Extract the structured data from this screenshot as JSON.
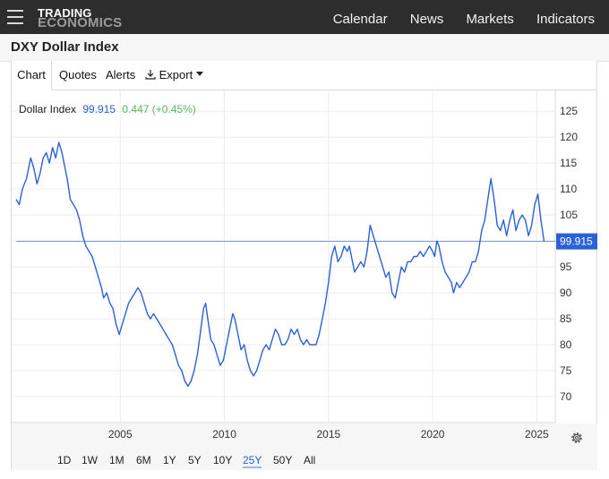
{
  "brand": {
    "line1": "TRADING",
    "line2": "ECONOMICS"
  },
  "topnav": [
    "Calendar",
    "News",
    "Markets",
    "Indicators"
  ],
  "page_title": "DXY Dollar Index",
  "tabs": {
    "chart": "Chart",
    "quotes": "Quotes",
    "alerts": "Alerts",
    "export": "Export"
  },
  "legend": {
    "name": "Dollar Index",
    "value": "99.915",
    "change": "0.447 (+0.45%)"
  },
  "last_value_tag": "99.915",
  "ranges": [
    "1D",
    "1W",
    "1M",
    "6M",
    "1Y",
    "5Y",
    "10Y",
    "25Y",
    "50Y",
    "All"
  ],
  "selected_range": "25Y",
  "colors": {
    "series": "#2b61d6",
    "change_up": "#5cb85c",
    "topbar": "#2d2d2d"
  },
  "chart_data": {
    "type": "line",
    "series": [
      {
        "name": "Dollar Index",
        "points": [
          [
            2000.0,
            108
          ],
          [
            2000.15,
            107
          ],
          [
            2000.3,
            110
          ],
          [
            2000.5,
            112
          ],
          [
            2000.7,
            116
          ],
          [
            2000.85,
            114
          ],
          [
            2001.0,
            111
          ],
          [
            2001.15,
            113
          ],
          [
            2001.3,
            116
          ],
          [
            2001.45,
            117
          ],
          [
            2001.6,
            115
          ],
          [
            2001.75,
            118
          ],
          [
            2001.9,
            116
          ],
          [
            2002.05,
            119
          ],
          [
            2002.2,
            117
          ],
          [
            2002.3,
            115
          ],
          [
            2002.45,
            112
          ],
          [
            2002.6,
            108
          ],
          [
            2002.75,
            107
          ],
          [
            2002.9,
            106
          ],
          [
            2003.05,
            104
          ],
          [
            2003.2,
            101
          ],
          [
            2003.35,
            99
          ],
          [
            2003.5,
            98
          ],
          [
            2003.65,
            97
          ],
          [
            2003.8,
            95
          ],
          [
            2003.95,
            93
          ],
          [
            2004.1,
            91
          ],
          [
            2004.2,
            89
          ],
          [
            2004.35,
            90
          ],
          [
            2004.5,
            88
          ],
          [
            2004.65,
            87
          ],
          [
            2004.8,
            84
          ],
          [
            2004.95,
            82
          ],
          [
            2005.1,
            84
          ],
          [
            2005.25,
            86
          ],
          [
            2005.4,
            88
          ],
          [
            2005.55,
            89
          ],
          [
            2005.7,
            90
          ],
          [
            2005.85,
            91
          ],
          [
            2006.0,
            90
          ],
          [
            2006.15,
            88
          ],
          [
            2006.3,
            86
          ],
          [
            2006.45,
            85
          ],
          [
            2006.6,
            86
          ],
          [
            2006.75,
            85
          ],
          [
            2006.9,
            84
          ],
          [
            2007.05,
            83
          ],
          [
            2007.2,
            82
          ],
          [
            2007.35,
            81
          ],
          [
            2007.5,
            80
          ],
          [
            2007.65,
            78
          ],
          [
            2007.8,
            76
          ],
          [
            2007.95,
            75
          ],
          [
            2008.1,
            73
          ],
          [
            2008.25,
            72
          ],
          [
            2008.4,
            73
          ],
          [
            2008.55,
            75
          ],
          [
            2008.7,
            78
          ],
          [
            2008.8,
            81
          ],
          [
            2008.9,
            84
          ],
          [
            2009.0,
            87
          ],
          [
            2009.1,
            88
          ],
          [
            2009.2,
            85
          ],
          [
            2009.35,
            81
          ],
          [
            2009.5,
            80
          ],
          [
            2009.65,
            78
          ],
          [
            2009.8,
            76
          ],
          [
            2009.95,
            77
          ],
          [
            2010.1,
            80
          ],
          [
            2010.25,
            83
          ],
          [
            2010.4,
            86
          ],
          [
            2010.5,
            85
          ],
          [
            2010.65,
            82
          ],
          [
            2010.8,
            79
          ],
          [
            2010.95,
            80
          ],
          [
            2011.1,
            77
          ],
          [
            2011.25,
            75
          ],
          [
            2011.4,
            74
          ],
          [
            2011.55,
            75
          ],
          [
            2011.7,
            77
          ],
          [
            2011.85,
            79
          ],
          [
            2012.0,
            80
          ],
          [
            2012.15,
            79
          ],
          [
            2012.3,
            81
          ],
          [
            2012.45,
            83
          ],
          [
            2012.6,
            82
          ],
          [
            2012.75,
            80
          ],
          [
            2012.9,
            80
          ],
          [
            2013.05,
            81
          ],
          [
            2013.2,
            83
          ],
          [
            2013.35,
            82
          ],
          [
            2013.5,
            83
          ],
          [
            2013.65,
            81
          ],
          [
            2013.8,
            80
          ],
          [
            2013.95,
            81
          ],
          [
            2014.1,
            80
          ],
          [
            2014.25,
            80
          ],
          [
            2014.4,
            80
          ],
          [
            2014.55,
            82
          ],
          [
            2014.7,
            85
          ],
          [
            2014.85,
            88
          ],
          [
            2015.0,
            92
          ],
          [
            2015.15,
            97
          ],
          [
            2015.3,
            99
          ],
          [
            2015.45,
            96
          ],
          [
            2015.6,
            97
          ],
          [
            2015.75,
            99
          ],
          [
            2015.9,
            98
          ],
          [
            2016.0,
            99
          ],
          [
            2016.1,
            97
          ],
          [
            2016.25,
            94
          ],
          [
            2016.4,
            95
          ],
          [
            2016.55,
            96
          ],
          [
            2016.7,
            95
          ],
          [
            2016.85,
            98
          ],
          [
            2017.0,
            103
          ],
          [
            2017.15,
            101
          ],
          [
            2017.3,
            99
          ],
          [
            2017.45,
            97
          ],
          [
            2017.6,
            95
          ],
          [
            2017.75,
            93
          ],
          [
            2017.9,
            94
          ],
          [
            2018.05,
            90
          ],
          [
            2018.2,
            89
          ],
          [
            2018.35,
            92
          ],
          [
            2018.5,
            95
          ],
          [
            2018.65,
            94
          ],
          [
            2018.8,
            96
          ],
          [
            2018.95,
            96
          ],
          [
            2019.1,
            97
          ],
          [
            2019.25,
            97
          ],
          [
            2019.4,
            98
          ],
          [
            2019.55,
            97
          ],
          [
            2019.7,
            98
          ],
          [
            2019.85,
            99
          ],
          [
            2020.0,
            98
          ],
          [
            2020.1,
            97
          ],
          [
            2020.2,
            100
          ],
          [
            2020.3,
            99
          ],
          [
            2020.45,
            96
          ],
          [
            2020.6,
            94
          ],
          [
            2020.75,
            93
          ],
          [
            2020.9,
            92
          ],
          [
            2021.0,
            90
          ],
          [
            2021.15,
            92
          ],
          [
            2021.3,
            91
          ],
          [
            2021.45,
            92
          ],
          [
            2021.6,
            93
          ],
          [
            2021.75,
            94
          ],
          [
            2021.9,
            96
          ],
          [
            2022.05,
            96
          ],
          [
            2022.2,
            98
          ],
          [
            2022.35,
            102
          ],
          [
            2022.5,
            104
          ],
          [
            2022.65,
            108
          ],
          [
            2022.8,
            112
          ],
          [
            2022.95,
            108
          ],
          [
            2023.1,
            103
          ],
          [
            2023.25,
            102
          ],
          [
            2023.4,
            104
          ],
          [
            2023.55,
            101
          ],
          [
            2023.7,
            104
          ],
          [
            2023.85,
            106
          ],
          [
            2024.0,
            102
          ],
          [
            2024.15,
            104
          ],
          [
            2024.3,
            105
          ],
          [
            2024.45,
            104
          ],
          [
            2024.6,
            101
          ],
          [
            2024.75,
            103
          ],
          [
            2024.9,
            107
          ],
          [
            2025.05,
            109
          ],
          [
            2025.2,
            104
          ],
          [
            2025.35,
            99.9
          ]
        ]
      }
    ],
    "xaxis": {
      "ticks": [
        2005,
        2010,
        2015,
        2020,
        2025
      ],
      "range": [
        2000,
        2025.8
      ]
    },
    "yaxis": {
      "ticks": [
        70,
        75,
        80,
        85,
        90,
        95,
        100,
        105,
        110,
        115,
        120,
        125
      ],
      "labels": [
        "70",
        "75",
        "80",
        "85",
        "90",
        "95",
        "",
        "105",
        "110",
        "115",
        "120",
        "125"
      ],
      "range": [
        65,
        129
      ],
      "position": "right"
    },
    "last_value": 99.915,
    "grid": true
  }
}
